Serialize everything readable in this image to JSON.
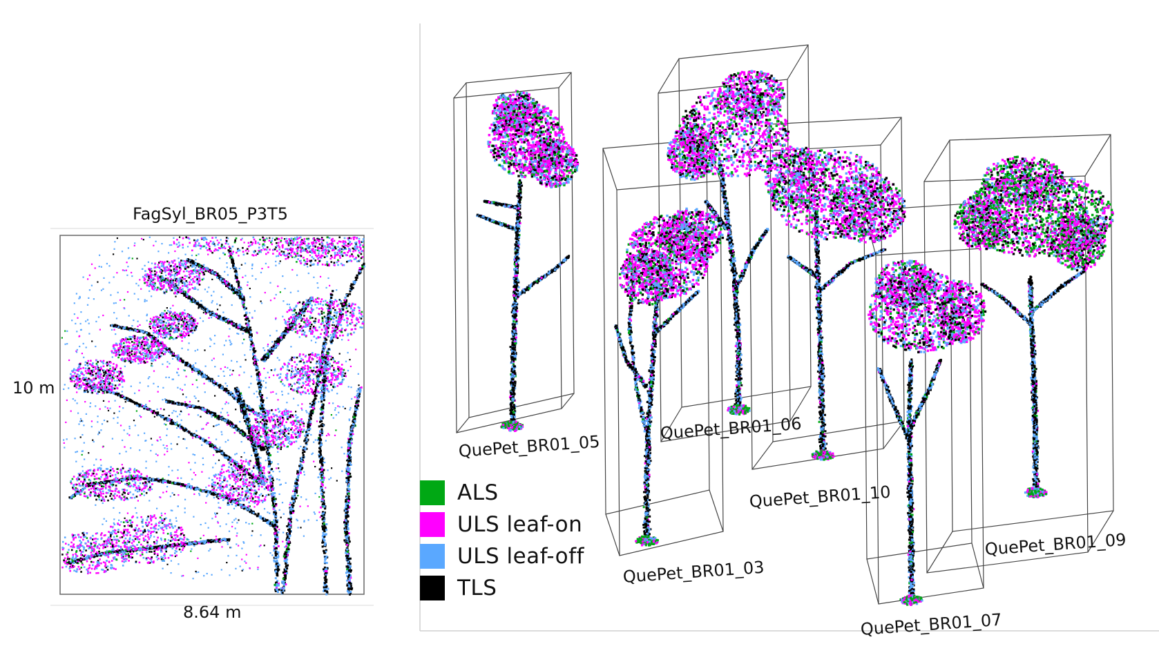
{
  "left_panel": {
    "title": "FagSyl_BR05_P3T5",
    "height_label": "10 m",
    "width_label": "8.64 m"
  },
  "trees": [
    {
      "id": "t05",
      "label": "QuePet_BR01_05"
    },
    {
      "id": "t06",
      "label": "QuePet_BR01_06"
    },
    {
      "id": "t10",
      "label": "QuePet_BR01_10"
    },
    {
      "id": "t03",
      "label": "QuePet_BR01_03"
    },
    {
      "id": "t07",
      "label": "QuePet_BR01_07"
    },
    {
      "id": "t09",
      "label": "QuePet_BR01_09"
    }
  ],
  "legend": [
    {
      "label": "ALS",
      "color": "#00a814"
    },
    {
      "label": "ULS leaf-on",
      "color": "#ff00ff"
    },
    {
      "label": "ULS leaf-off",
      "color": "#5aa8ff"
    },
    {
      "label": "TLS",
      "color": "#000000"
    }
  ]
}
